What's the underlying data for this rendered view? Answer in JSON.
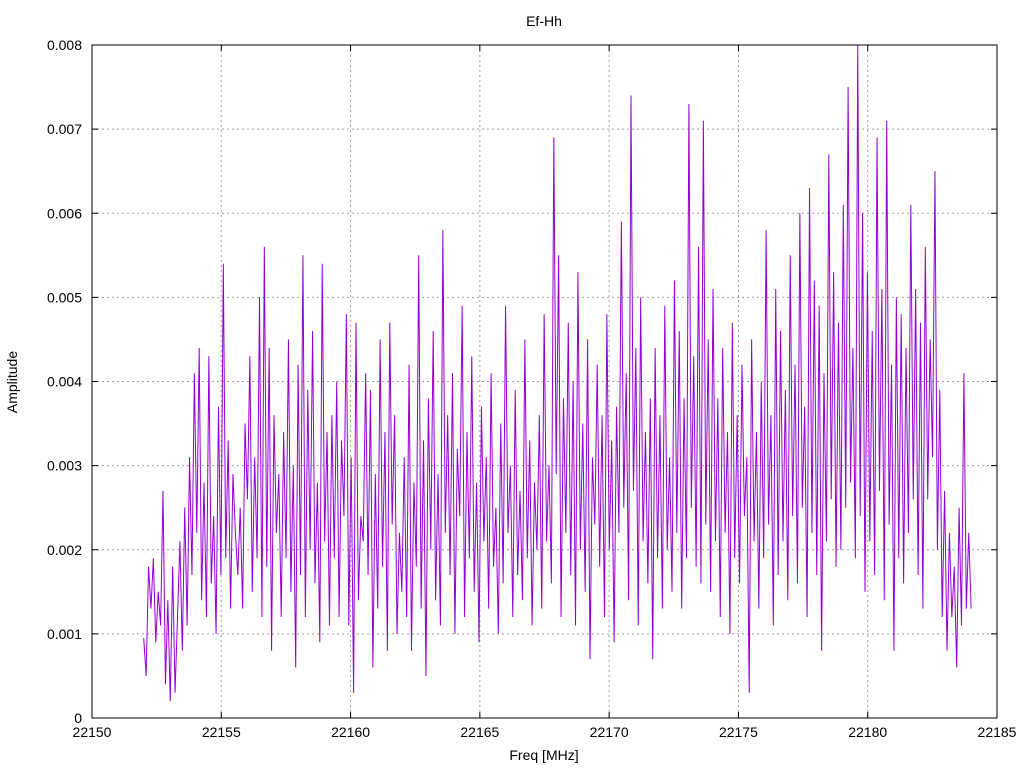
{
  "chart_data": {
    "type": "line",
    "title": "Ef-Hh",
    "xlabel": "Freq [MHz]",
    "ylabel": "Amplitude",
    "xlim": [
      22150,
      22185
    ],
    "ylim": [
      0,
      0.008
    ],
    "x_ticks": [
      "22150",
      "22155",
      "22160",
      "22165",
      "22170",
      "22175",
      "22180",
      "22185"
    ],
    "y_ticks": [
      "0",
      "0.001",
      "0.002",
      "0.003",
      "0.004",
      "0.005",
      "0.006",
      "0.007",
      "0.008"
    ],
    "grid": true,
    "series_color": "#9400d3",
    "series": [
      {
        "x_start": 22152.0,
        "x_end": 22184.0,
        "values": [
          0.00095,
          0.0005,
          0.0018,
          0.0013,
          0.0019,
          0.0009,
          0.0015,
          0.0011,
          0.0027,
          0.0004,
          0.0014,
          0.0002,
          0.0018,
          0.0003,
          0.0012,
          0.0021,
          0.0008,
          0.0025,
          0.0011,
          0.0031,
          0.0017,
          0.0041,
          0.0022,
          0.0044,
          0.0014,
          0.0028,
          0.0012,
          0.0043,
          0.0016,
          0.0024,
          0.001,
          0.0037,
          0.0017,
          0.0054,
          0.0019,
          0.0033,
          0.0013,
          0.0029,
          0.0022,
          0.0017,
          0.0025,
          0.0013,
          0.0035,
          0.0026,
          0.0043,
          0.0015,
          0.0031,
          0.0019,
          0.005,
          0.0012,
          0.0056,
          0.0018,
          0.0044,
          0.0008,
          0.0036,
          0.0022,
          0.0029,
          0.0012,
          0.0034,
          0.0019,
          0.0045,
          0.0015,
          0.003,
          0.0006,
          0.0042,
          0.0017,
          0.0055,
          0.0012,
          0.0039,
          0.002,
          0.0046,
          0.0016,
          0.0028,
          0.0009,
          0.0054,
          0.0021,
          0.0034,
          0.0011,
          0.0036,
          0.0019,
          0.004,
          0.0012,
          0.0033,
          0.0024,
          0.0048,
          0.0011,
          0.0031,
          0.0003,
          0.0047,
          0.0014,
          0.0024,
          0.0021,
          0.0041,
          0.0017,
          0.0039,
          0.0006,
          0.0029,
          0.0013,
          0.0045,
          0.0018,
          0.0034,
          0.0008,
          0.0047,
          0.0023,
          0.0036,
          0.001,
          0.0022,
          0.0015,
          0.0031,
          0.0012,
          0.0042,
          0.0008,
          0.0028,
          0.0018,
          0.0055,
          0.0013,
          0.0033,
          0.0005,
          0.0038,
          0.002,
          0.0046,
          0.0014,
          0.0029,
          0.0011,
          0.0058,
          0.0022,
          0.0036,
          0.0017,
          0.0041,
          0.001,
          0.0032,
          0.0024,
          0.0049,
          0.0012,
          0.0034,
          0.0019,
          0.0043,
          0.0015,
          0.0028,
          0.0009,
          0.0037,
          0.0021,
          0.0031,
          0.0013,
          0.0041,
          0.0018,
          0.0025,
          0.001,
          0.0035,
          0.0016,
          0.0049,
          0.0022,
          0.003,
          0.0012,
          0.0039,
          0.0017,
          0.0027,
          0.0014,
          0.0045,
          0.0019,
          0.0033,
          0.0011,
          0.0028,
          0.002,
          0.0036,
          0.0013,
          0.0048,
          0.0021,
          0.003,
          0.0016,
          0.0069,
          0.0029,
          0.0055,
          0.0012,
          0.0038,
          0.0022,
          0.0047,
          0.0017,
          0.004,
          0.0011,
          0.0053,
          0.002,
          0.0035,
          0.0015,
          0.0045,
          0.0007,
          0.0031,
          0.0023,
          0.0042,
          0.0018,
          0.0036,
          0.0012,
          0.0048,
          0.002,
          0.0033,
          0.0009,
          0.0037,
          0.0022,
          0.0059,
          0.0025,
          0.0041,
          0.0014,
          0.0074,
          0.0027,
          0.0044,
          0.0011,
          0.005,
          0.0021,
          0.0034,
          0.0016,
          0.0038,
          0.0007,
          0.0044,
          0.0019,
          0.0036,
          0.0013,
          0.0049,
          0.002,
          0.0031,
          0.0015,
          0.0052,
          0.0022,
          0.0046,
          0.0013,
          0.0038,
          0.0019,
          0.0073,
          0.0025,
          0.0043,
          0.0018,
          0.0056,
          0.0016,
          0.0071,
          0.0023,
          0.0045,
          0.0015,
          0.0051,
          0.0021,
          0.0038,
          0.0012,
          0.0044,
          0.0022,
          0.0034,
          0.001,
          0.0047,
          0.0019,
          0.0036,
          0.0016,
          0.0042,
          0.0024,
          0.0031,
          0.0003,
          0.0045,
          0.0021,
          0.0034,
          0.0013,
          0.004,
          0.0019,
          0.0058,
          0.0023,
          0.0036,
          0.0011,
          0.0051,
          0.0017,
          0.0046,
          0.0021,
          0.0039,
          0.0014,
          0.0055,
          0.0024,
          0.0042,
          0.0016,
          0.006,
          0.0025,
          0.0037,
          0.0012,
          0.0063,
          0.0022,
          0.0052,
          0.0017,
          0.0049,
          0.0008,
          0.0041,
          0.0021,
          0.0067,
          0.0026,
          0.0053,
          0.0018,
          0.0047,
          0.002,
          0.0061,
          0.0025,
          0.0075,
          0.0028,
          0.0044,
          0.0019,
          0.008,
          0.0024,
          0.006,
          0.0015,
          0.0053,
          0.0021,
          0.0046,
          0.0017,
          0.0069,
          0.0027,
          0.0051,
          0.0014,
          0.0071,
          0.0023,
          0.0042,
          0.0008,
          0.005,
          0.0019,
          0.0048,
          0.0016,
          0.0044,
          0.0022,
          0.0061,
          0.0026,
          0.0051,
          0.0017,
          0.0047,
          0.0013,
          0.0056,
          0.0026,
          0.0045,
          0.0031,
          0.0065,
          0.002,
          0.0039,
          0.0012,
          0.0027,
          0.0008,
          0.0022,
          0.0012,
          0.0018,
          0.0006,
          0.0025,
          0.0011,
          0.0041,
          0.0013,
          0.0022,
          0.0013
        ]
      }
    ]
  }
}
